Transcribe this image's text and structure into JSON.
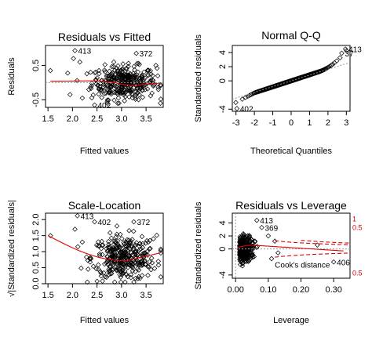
{
  "chart_data": [
    {
      "type": "scatter",
      "title": "Residuals vs Fitted",
      "xlabel": "Fitted values",
      "ylabel": "Residuals",
      "xlim": [
        1.45,
        3.85
      ],
      "ylim": [
        -0.72,
        1.08
      ],
      "xticks": [
        "1.5",
        "2.0",
        "2.5",
        "3.0",
        "3.5"
      ],
      "yticks": [
        "-0.5",
        "0.5"
      ],
      "reference_line": 0,
      "labeled_points": [
        {
          "label": "413",
          "x": 2.05,
          "y": 0.93
        },
        {
          "label": "372",
          "x": 3.3,
          "y": 0.85
        },
        {
          "label": "402",
          "x": 2.45,
          "y": -0.65
        }
      ]
    },
    {
      "type": "scatter",
      "title": "Normal Q-Q",
      "xlabel": "Theoretical Quantiles",
      "ylabel": "Standardized residuals",
      "xlim": [
        -3.2,
        3.2
      ],
      "ylim": [
        -4.3,
        5.0
      ],
      "xticks": [
        "-3",
        "-2",
        "-1",
        "0",
        "1",
        "2",
        "3"
      ],
      "yticks": [
        "-4",
        "0",
        "2",
        "4"
      ],
      "labeled_points": [
        {
          "label": "413",
          "x": 2.95,
          "y": 4.5
        },
        {
          "label": "37",
          "x": 2.75,
          "y": 3.9
        },
        {
          "label": "402",
          "x": -2.95,
          "y": -3.9
        }
      ]
    },
    {
      "type": "scatter",
      "title": "Scale-Location",
      "xlabel": "Fitted values",
      "ylabel": "√|Standardized residuals|",
      "xlim": [
        1.45,
        3.85
      ],
      "ylim": [
        0,
        2.2
      ],
      "xticks": [
        "1.5",
        "2.0",
        "2.5",
        "3.0",
        "3.5"
      ],
      "yticks": [
        "0.0",
        "0.5",
        "1.0",
        "1.5",
        "2.0"
      ],
      "labeled_points": [
        {
          "label": "413",
          "x": 2.1,
          "y": 2.12
        },
        {
          "label": "402",
          "x": 2.45,
          "y": 1.93
        },
        {
          "label": "372",
          "x": 3.25,
          "y": 1.93
        }
      ]
    },
    {
      "type": "scatter",
      "title": "Residuals vs Leverage",
      "xlabel": "Leverage",
      "ylabel": "Standardized residuals",
      "xlim": [
        -0.01,
        0.35
      ],
      "ylim": [
        -4.5,
        5.5
      ],
      "xticks": [
        "0.00",
        "0.10",
        "0.20",
        "0.30"
      ],
      "yticks": [
        "-4",
        "0",
        "2",
        "4"
      ],
      "labeled_points": [
        {
          "label": "413",
          "x": 0.065,
          "y": 4.4
        },
        {
          "label": "369",
          "x": 0.08,
          "y": 3.3
        },
        {
          "label": "406",
          "x": 0.3,
          "y": -2.0
        }
      ],
      "annotation": "Cook's distance",
      "cook_contours": [
        {
          "label": "1",
          "side": "upper"
        },
        {
          "label": "0.5",
          "side": "upper"
        },
        {
          "label": "0.5",
          "side": "lower"
        }
      ]
    }
  ]
}
